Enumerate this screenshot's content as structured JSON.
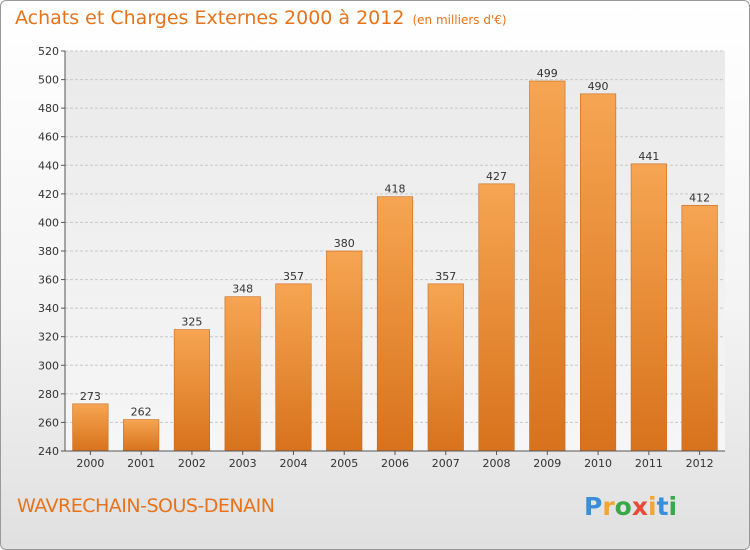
{
  "title": "Achats et Charges Externes 2000 à 2012",
  "subtitle": "(en milliers d'€)",
  "location": "WAVRECHAIN-SOUS-DENAIN",
  "logo": {
    "text": "Proxiti",
    "letters": [
      "P",
      "r",
      "o",
      "x",
      "i",
      "t",
      "i"
    ],
    "letter_colors": [
      "#3a8fd8",
      "#f2a531",
      "#3aa84a",
      "#e84a3a",
      "#f2a531",
      "#3a8fd8",
      "#3aa84a"
    ]
  },
  "chart_data": {
    "type": "bar",
    "categories": [
      "2000",
      "2001",
      "2002",
      "2003",
      "2004",
      "2005",
      "2006",
      "2007",
      "2008",
      "2009",
      "2010",
      "2011",
      "2012"
    ],
    "values": [
      273,
      262,
      325,
      348,
      357,
      380,
      418,
      357,
      427,
      499,
      490,
      441,
      412
    ],
    "ylim": [
      240,
      520
    ],
    "yticks": [
      240,
      260,
      280,
      300,
      320,
      340,
      360,
      380,
      400,
      420,
      440,
      460,
      480,
      500,
      520
    ],
    "grid": true,
    "bar_color": "#f0943c",
    "xlabel": "",
    "ylabel": ""
  }
}
